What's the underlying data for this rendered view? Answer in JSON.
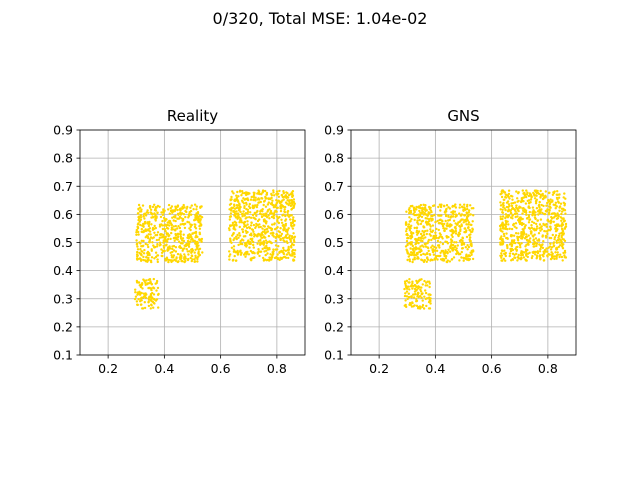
{
  "figure_title": "0/320, Total MSE: 1.04e-02",
  "chart_data": [
    {
      "type": "scatter",
      "title": "Reality",
      "xlabel": "",
      "ylabel": "",
      "xlim": [
        0.1,
        0.9
      ],
      "ylim": [
        0.1,
        0.9
      ],
      "xticks": [
        "0.2",
        "0.4",
        "0.6",
        "0.8"
      ],
      "yticks": [
        "0.1",
        "0.2",
        "0.3",
        "0.4",
        "0.5",
        "0.6",
        "0.7",
        "0.8",
        "0.9"
      ],
      "grid": true,
      "point_color": "#FFD700",
      "clusters": [
        {
          "x": [
            0.295,
            0.38
          ],
          "y": [
            0.265,
            0.37
          ]
        },
        {
          "x": [
            0.3,
            0.535
          ],
          "y": [
            0.43,
            0.635
          ]
        },
        {
          "x": [
            0.63,
            0.865
          ],
          "y": [
            0.435,
            0.685
          ]
        }
      ]
    },
    {
      "type": "scatter",
      "title": "GNS",
      "xlabel": "",
      "ylabel": "",
      "xlim": [
        0.1,
        0.9
      ],
      "ylim": [
        0.1,
        0.9
      ],
      "xticks": [
        "0.2",
        "0.4",
        "0.6",
        "0.8"
      ],
      "yticks": [
        "0.1",
        "0.2",
        "0.3",
        "0.4",
        "0.5",
        "0.6",
        "0.7",
        "0.8",
        "0.9"
      ],
      "grid": true,
      "point_color": "#FFD700",
      "clusters": [
        {
          "x": [
            0.29,
            0.385
          ],
          "y": [
            0.265,
            0.37
          ]
        },
        {
          "x": [
            0.295,
            0.535
          ],
          "y": [
            0.43,
            0.635
          ]
        },
        {
          "x": [
            0.63,
            0.865
          ],
          "y": [
            0.435,
            0.685
          ]
        }
      ]
    }
  ]
}
